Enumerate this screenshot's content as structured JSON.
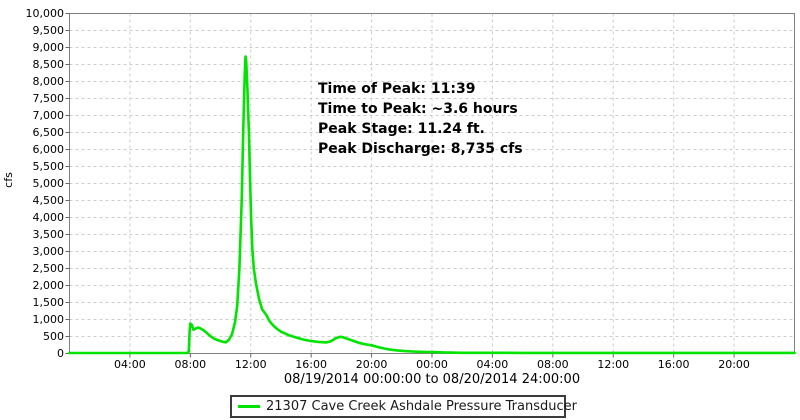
{
  "chart": {
    "y_axis_title": "cfs",
    "x_axis_title": "08/19/2014 00:00:00 to 08/20/2014 24:00:00",
    "annotation": {
      "lines": [
        "Time of Peak: 11:39",
        "Time to Peak: ~3.6 hours",
        "Peak Stage: 11.24 ft.",
        "Peak Discharge: 8,735 cfs"
      ]
    },
    "legend": {
      "label": "21307 Cave Creek Ashdale Pressure Transducer",
      "swatch_color": "#00e400"
    },
    "colors": {
      "series_line": "#00e400",
      "gridline": "#cccccc",
      "axis_border": "#808080",
      "tick": "#666666",
      "text": "#000000",
      "legend_border": "#3c3c3c",
      "background": "#ffffff"
    }
  },
  "chart_data": {
    "type": "line",
    "title": "",
    "xlabel": "08/19/2014 00:00:00 to 08/20/2014 24:00:00",
    "ylabel": "cfs",
    "ylim": [
      0,
      10000
    ],
    "xlim_hours": [
      0,
      48
    ],
    "grid": true,
    "legend_position": "bottom",
    "peak": {
      "time_of_peak": "11:39",
      "time_to_peak_hours": 3.6,
      "peak_stage_ft": 11.24,
      "peak_discharge_cfs": 8735
    },
    "y_ticks": {
      "values": [
        0,
        500,
        1000,
        1500,
        2000,
        2500,
        3000,
        3500,
        4000,
        4500,
        5000,
        5500,
        6000,
        6500,
        7000,
        7500,
        8000,
        8500,
        9000,
        9500,
        10000
      ],
      "labels": [
        "0",
        "500",
        "1,000",
        "1,500",
        "2,000",
        "2,500",
        "3,000",
        "3,500",
        "4,000",
        "4,500",
        "5,000",
        "5,500",
        "6,000",
        "6,500",
        "7,000",
        "7,500",
        "8,000",
        "8,500",
        "9,000",
        "9,500",
        "10,000"
      ]
    },
    "x_ticks": {
      "hours": [
        4,
        8,
        12,
        16,
        20,
        24,
        28,
        32,
        36,
        40,
        44
      ],
      "labels": [
        "04:00",
        "08:00",
        "12:00",
        "16:00",
        "20:00",
        "00:00",
        "04:00",
        "08:00",
        "12:00",
        "16:00",
        "20:00"
      ]
    },
    "series": [
      {
        "name": "21307 Cave Creek Ashdale Pressure Transducer",
        "color": "#00e400",
        "points_hours_cfs": [
          [
            0,
            15
          ],
          [
            2,
            15
          ],
          [
            4,
            15
          ],
          [
            6,
            15
          ],
          [
            7.2,
            15
          ],
          [
            7.8,
            18
          ],
          [
            7.9,
            60
          ],
          [
            7.95,
            650
          ],
          [
            8.0,
            880
          ],
          [
            8.1,
            840
          ],
          [
            8.2,
            700
          ],
          [
            8.35,
            730
          ],
          [
            8.5,
            765
          ],
          [
            8.65,
            745
          ],
          [
            8.85,
            690
          ],
          [
            9.05,
            620
          ],
          [
            9.3,
            520
          ],
          [
            9.6,
            430
          ],
          [
            9.9,
            380
          ],
          [
            10.15,
            345
          ],
          [
            10.35,
            330
          ],
          [
            10.55,
            400
          ],
          [
            10.75,
            560
          ],
          [
            10.95,
            900
          ],
          [
            11.1,
            1400
          ],
          [
            11.25,
            2500
          ],
          [
            11.4,
            4500
          ],
          [
            11.5,
            6500
          ],
          [
            11.6,
            8200
          ],
          [
            11.65,
            8735
          ],
          [
            11.7,
            8600
          ],
          [
            11.78,
            7800
          ],
          [
            11.88,
            6500
          ],
          [
            11.95,
            5200
          ],
          [
            12.02,
            4000
          ],
          [
            12.1,
            3100
          ],
          [
            12.2,
            2500
          ],
          [
            12.35,
            2050
          ],
          [
            12.55,
            1600
          ],
          [
            12.75,
            1300
          ],
          [
            13.0,
            1150
          ],
          [
            13.25,
            950
          ],
          [
            13.5,
            820
          ],
          [
            13.75,
            720
          ],
          [
            14.0,
            640
          ],
          [
            14.5,
            540
          ],
          [
            15.0,
            470
          ],
          [
            15.5,
            410
          ],
          [
            16.0,
            365
          ],
          [
            16.5,
            340
          ],
          [
            17.0,
            325
          ],
          [
            17.3,
            360
          ],
          [
            17.6,
            440
          ],
          [
            17.9,
            490
          ],
          [
            18.1,
            480
          ],
          [
            18.4,
            430
          ],
          [
            18.8,
            370
          ],
          [
            19.2,
            310
          ],
          [
            19.6,
            270
          ],
          [
            20.0,
            240
          ],
          [
            20.4,
            190
          ],
          [
            20.8,
            150
          ],
          [
            21.2,
            115
          ],
          [
            21.7,
            90
          ],
          [
            22.2,
            70
          ],
          [
            22.7,
            58
          ],
          [
            23.2,
            50
          ],
          [
            23.7,
            45
          ],
          [
            24.2,
            40
          ],
          [
            24.7,
            32
          ],
          [
            25.2,
            26
          ],
          [
            26,
            22
          ],
          [
            27,
            20
          ],
          [
            28,
            20
          ],
          [
            30,
            19
          ],
          [
            32,
            19
          ],
          [
            34,
            19
          ],
          [
            36,
            19
          ],
          [
            38,
            19
          ],
          [
            40,
            19
          ],
          [
            42,
            19
          ],
          [
            44,
            19
          ],
          [
            46,
            19
          ],
          [
            48,
            19
          ]
        ]
      }
    ]
  }
}
